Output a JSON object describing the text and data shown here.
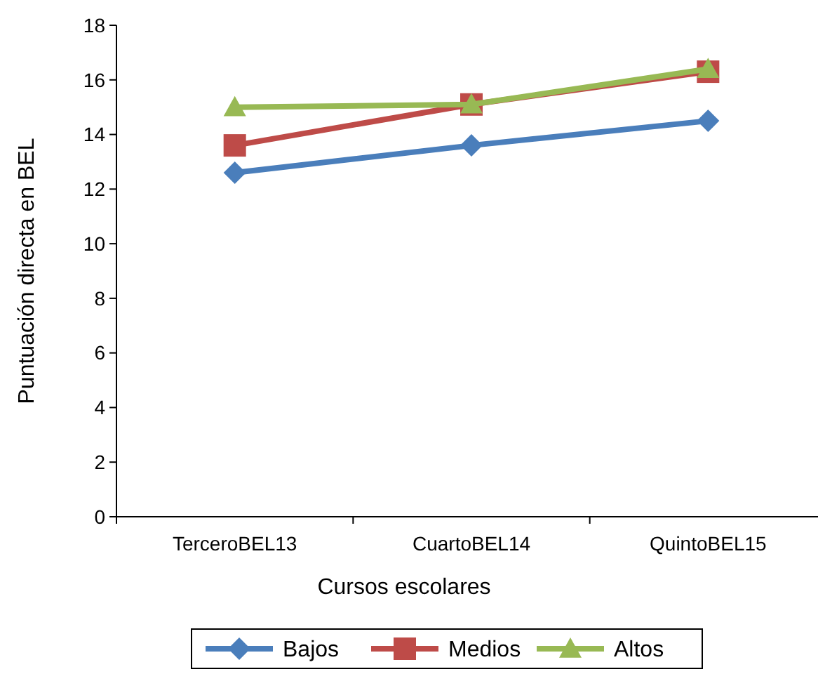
{
  "chart_data": {
    "type": "line",
    "xlabel": "Cursos escolares",
    "ylabel": "Puntuación directa en BEL",
    "categories": [
      "TerceroBEL13",
      "CuartoBEL14",
      "QuintoBEL15"
    ],
    "series": [
      {
        "name": "Bajos",
        "color": "#4a7ebb",
        "values": [
          12.6,
          13.6,
          14.5
        ],
        "marker": "diamond"
      },
      {
        "name": "Medios",
        "color": "#be4b48",
        "values": [
          13.6,
          15.1,
          16.3
        ],
        "marker": "square"
      },
      {
        "name": "Altos",
        "color": "#98b954",
        "values": [
          15.0,
          15.1,
          16.4
        ],
        "marker": "triangle"
      }
    ],
    "ylim": [
      0,
      18
    ],
    "yticks": [
      0,
      2,
      4,
      6,
      8,
      10,
      12,
      14,
      16,
      18
    ],
    "grid": false,
    "legend": "bottom",
    "line_style": "solid"
  }
}
